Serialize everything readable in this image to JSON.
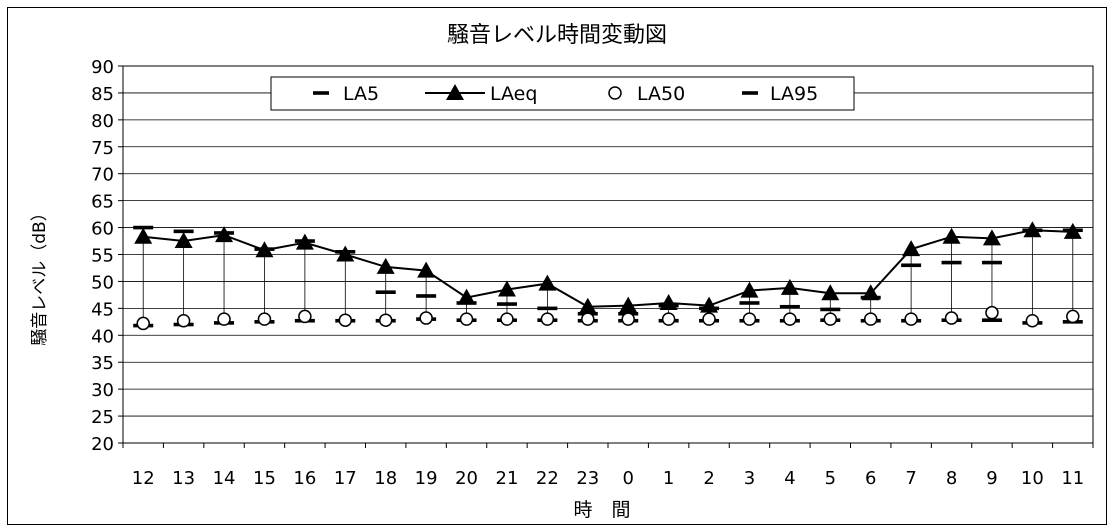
{
  "chart_data": {
    "type": "line",
    "title": "騒音レベル時間変動図",
    "xlabel": "時　間",
    "ylabel": "騒音レベル（dB）",
    "ylim": [
      20,
      90
    ],
    "yticks": [
      20,
      25,
      30,
      35,
      40,
      45,
      50,
      55,
      60,
      65,
      70,
      75,
      80,
      85,
      90
    ],
    "grid": true,
    "legend_position": "top-center",
    "categories": [
      "12",
      "13",
      "14",
      "15",
      "16",
      "17",
      "18",
      "19",
      "20",
      "21",
      "22",
      "23",
      "0",
      "1",
      "2",
      "3",
      "4",
      "5",
      "6",
      "7",
      "8",
      "9",
      "10",
      "11"
    ],
    "series": [
      {
        "name": "LA5",
        "marker": "dash",
        "values": [
          60.0,
          59.3,
          59.0,
          56.0,
          57.5,
          55.5,
          48.0,
          47.3,
          46.0,
          45.8,
          45.0,
          44.0,
          44.0,
          45.5,
          45.0,
          46.0,
          45.3,
          44.8,
          47.0,
          53.0,
          53.5,
          53.5,
          59.5,
          59.5
        ]
      },
      {
        "name": "LAeq",
        "marker": "triangle",
        "line": true,
        "values": [
          58.3,
          57.5,
          58.6,
          55.8,
          57.2,
          55.0,
          52.7,
          52.0,
          47.0,
          48.5,
          49.6,
          45.3,
          45.5,
          46.0,
          45.5,
          48.3,
          48.8,
          47.8,
          47.8,
          56.0,
          58.3,
          58.0,
          59.5,
          59.2
        ]
      },
      {
        "name": "LA50",
        "marker": "circle",
        "values": [
          42.2,
          42.7,
          43.0,
          43.0,
          43.5,
          42.8,
          42.8,
          43.2,
          43.0,
          43.0,
          43.0,
          43.0,
          43.0,
          43.0,
          43.0,
          43.0,
          43.0,
          43.0,
          43.0,
          43.0,
          43.2,
          44.2,
          42.7,
          43.5
        ]
      },
      {
        "name": "LA95",
        "marker": "dash",
        "values": [
          41.8,
          42.0,
          42.3,
          42.5,
          42.7,
          42.7,
          42.7,
          43.0,
          42.8,
          42.8,
          42.8,
          42.7,
          42.7,
          42.7,
          42.7,
          42.7,
          42.7,
          42.8,
          42.7,
          42.7,
          42.8,
          42.8,
          42.3,
          42.5
        ]
      }
    ]
  }
}
